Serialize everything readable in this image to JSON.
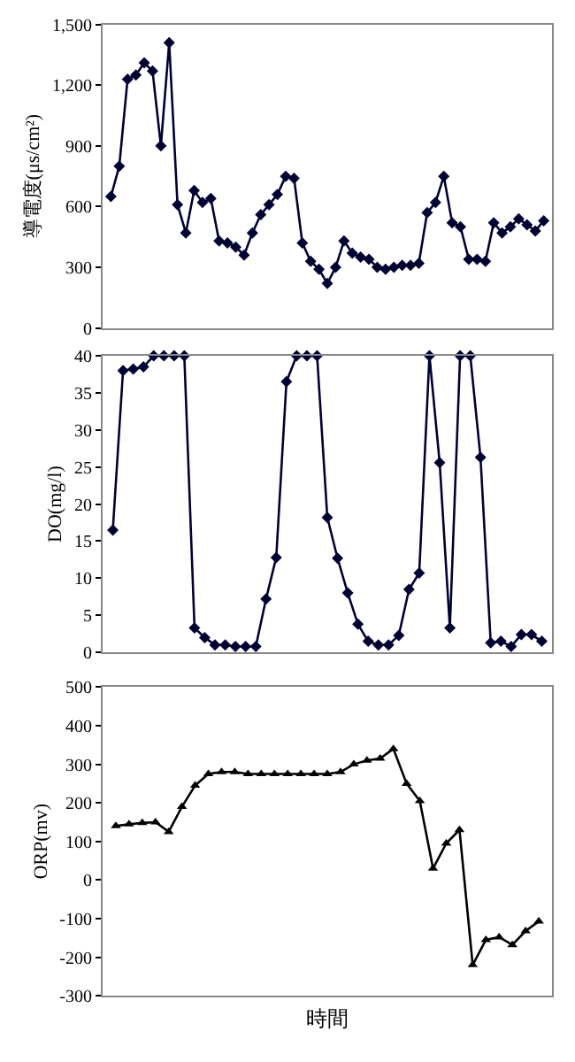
{
  "chart_data": [
    {
      "type": "line",
      "ylabel": "導電度(μs/cm²)",
      "ylim": [
        0,
        1500
      ],
      "yticks": [
        0,
        300,
        600,
        900,
        {
          "value": 1200,
          "label": "1,200"
        },
        {
          "value": 1500,
          "label": "1,500"
        }
      ],
      "tick_labels": "y",
      "marker": "diamond",
      "line_style": "solid",
      "categories": [
        null,
        null,
        null,
        null,
        null,
        null,
        null,
        null,
        null,
        null,
        null,
        null,
        null,
        null,
        null,
        null,
        null,
        null,
        null,
        null,
        null,
        null,
        null,
        null,
        null,
        null,
        null,
        null,
        null,
        null,
        null,
        null,
        null,
        null,
        null,
        null,
        null,
        null,
        null,
        null,
        null,
        null,
        null,
        null,
        null,
        null,
        null,
        null,
        null,
        null,
        null,
        null,
        null
      ],
      "series": [
        {
          "color": "#000033",
          "values": [
            650,
            800,
            1230,
            1250,
            1310,
            1270,
            900,
            1410,
            610,
            470,
            680,
            620,
            640,
            430,
            420,
            400,
            360,
            470,
            560,
            610,
            660,
            750,
            740,
            420,
            330,
            290,
            220,
            300,
            430,
            370,
            350,
            340,
            300,
            290,
            300,
            310,
            310,
            320,
            570,
            620,
            750,
            520,
            500,
            340,
            340,
            330,
            520,
            470,
            500,
            540,
            510,
            480,
            530
          ]
        }
      ]
    },
    {
      "type": "line",
      "ylabel": "DO(mg/l)",
      "ylim": [
        0,
        40
      ],
      "yticks": [
        0,
        5,
        10,
        15,
        20,
        25,
        30,
        35,
        40
      ],
      "tick_labels": "y",
      "marker": "diamond",
      "line_style": "solid",
      "categories": [
        null,
        null,
        null,
        null,
        null,
        null,
        null,
        null,
        null,
        null,
        null,
        null,
        null,
        null,
        null,
        null,
        null,
        null,
        null,
        null,
        null,
        null,
        null,
        null,
        null,
        null,
        null,
        null,
        null,
        null,
        null,
        null,
        null,
        null,
        null,
        null,
        null,
        null,
        null,
        null,
        null,
        null,
        null
      ],
      "series": [
        {
          "color": "#000033",
          "values": [
            16.5,
            38,
            38.2,
            38.5,
            40,
            40,
            40,
            40,
            3.3,
            2,
            1,
            1,
            0.8,
            0.8,
            0.8,
            7.2,
            12.8,
            36.5,
            40,
            40,
            40,
            18.2,
            12.7,
            8,
            3.8,
            1.5,
            1,
            1,
            2.3,
            8.5,
            10.7,
            40,
            25.6,
            3.3,
            40,
            40,
            26.3,
            1.3,
            1.5,
            0.8,
            2.4,
            2.4,
            1.5
          ]
        }
      ]
    },
    {
      "type": "line",
      "ylabel": "ORP(mv)",
      "xlabel": "時間",
      "ylim": [
        -300,
        500
      ],
      "yticks": [
        -300,
        -200,
        -100,
        0,
        100,
        200,
        300,
        400,
        500
      ],
      "tick_labels": "y",
      "marker": "triangle",
      "line_style": "solid",
      "categories": [
        null,
        null,
        null,
        null,
        null,
        null,
        null,
        null,
        null,
        null,
        null,
        null,
        null,
        null,
        null,
        null,
        null,
        null,
        null,
        null,
        null,
        null,
        null,
        null,
        null,
        null,
        null,
        null,
        null,
        null,
        null,
        null,
        null
      ],
      "series": [
        {
          "color": "#000000",
          "values": [
            140,
            145,
            148,
            150,
            125,
            190,
            245,
            275,
            280,
            280,
            275,
            275,
            275,
            275,
            275,
            275,
            275,
            280,
            300,
            310,
            315,
            340,
            250,
            205,
            30,
            95,
            130,
            -220,
            -155,
            -148,
            -168,
            -132,
            -107
          ]
        }
      ]
    }
  ]
}
